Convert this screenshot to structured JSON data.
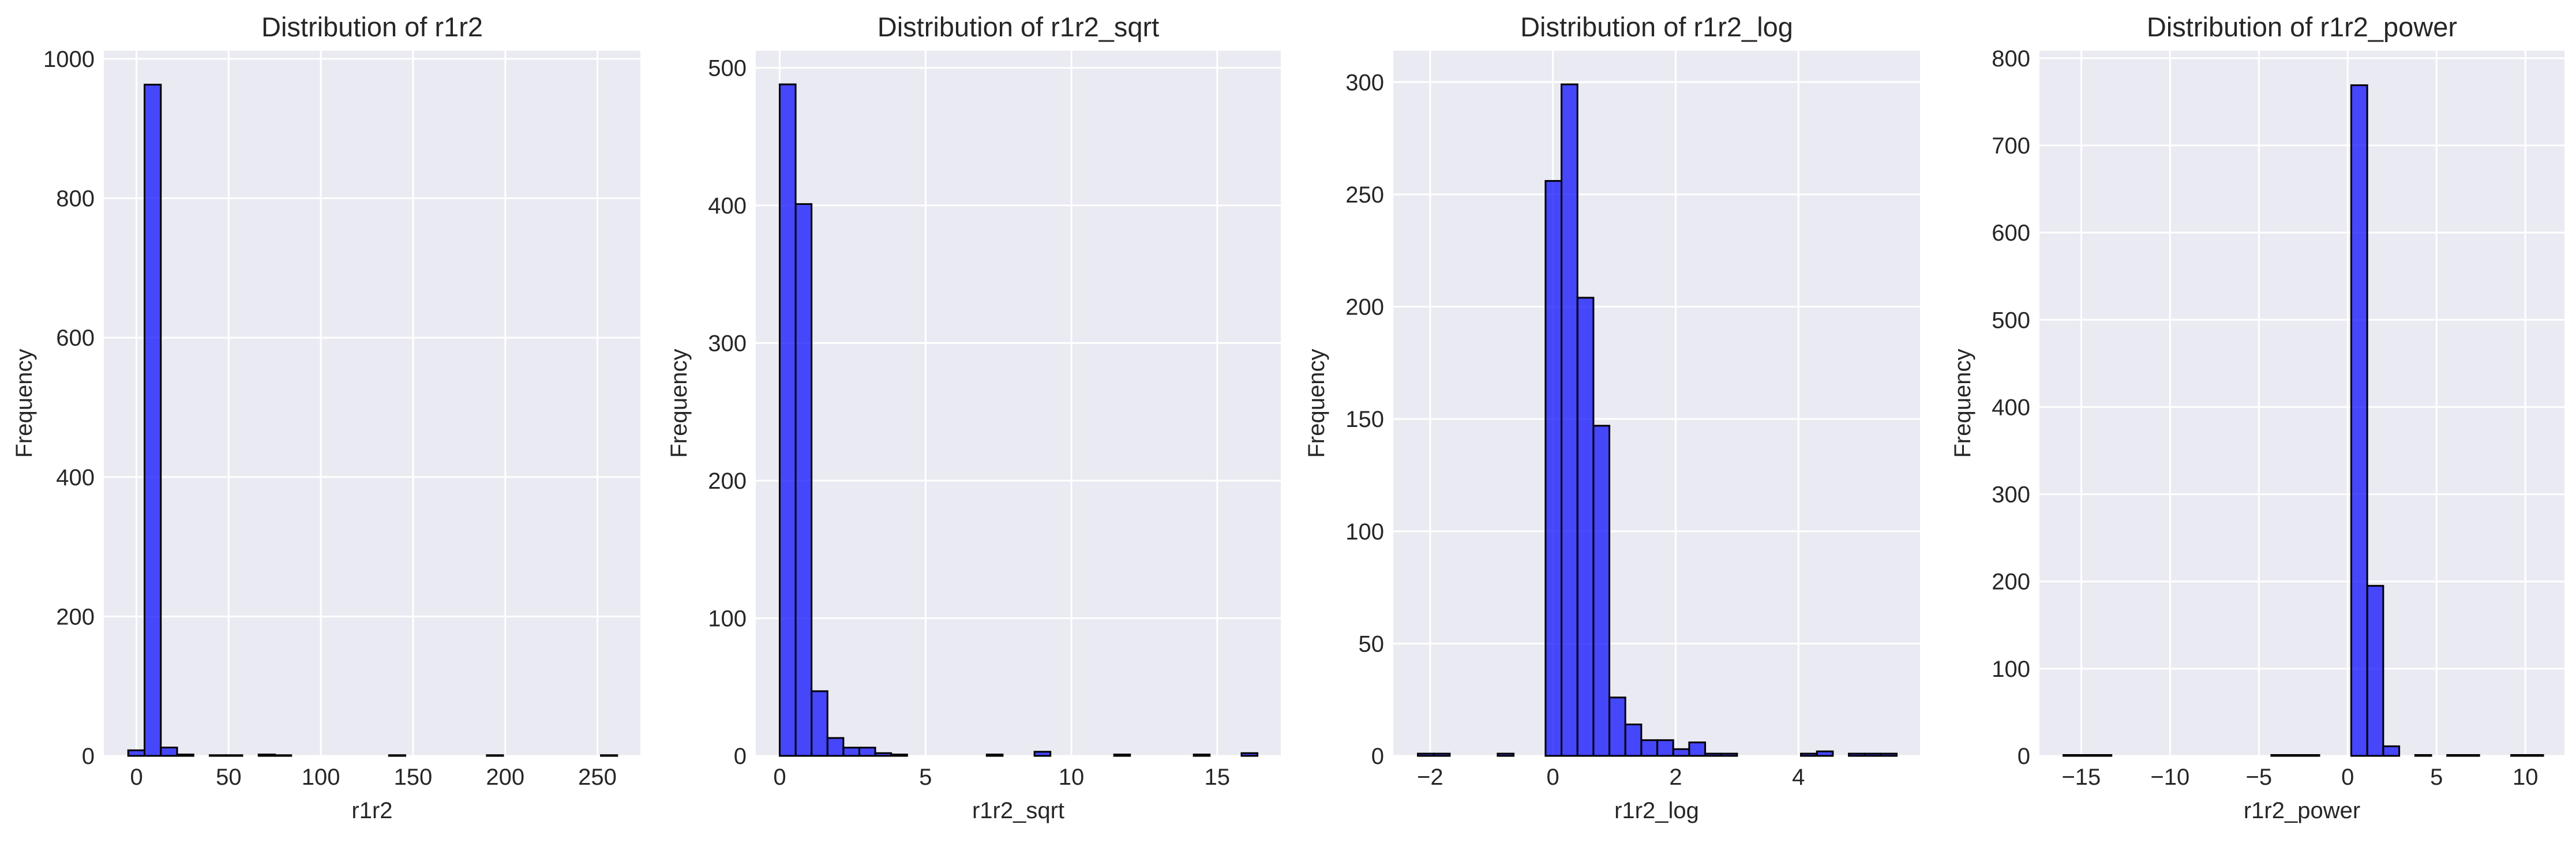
{
  "colors": {
    "figure_background": "#ffffff",
    "axes_background": "#eaeaf2",
    "grid": "#ffffff",
    "bar_fill": "#0000ff",
    "bar_fill_opacity": 0.7,
    "bar_edge": "#000000",
    "text": "#262626"
  },
  "chart_data": [
    {
      "type": "bar",
      "title": "Distribution of r1r2",
      "xlabel": "r1r2",
      "ylabel": "Frequency",
      "xlim": [
        -17.7,
        273.3
      ],
      "ylim": [
        0,
        1011.6
      ],
      "xticks": [
        0,
        50,
        100,
        150,
        200,
        250
      ],
      "yticks": [
        0,
        200,
        400,
        600,
        800,
        1000
      ],
      "grid": true,
      "legend": "none",
      "bins": {
        "start": -4.48,
        "width": 8.84,
        "count": 30
      },
      "counts": [
        8,
        963,
        12,
        2,
        0,
        1,
        1,
        0,
        2,
        1,
        0,
        0,
        0,
        0,
        0,
        0,
        1,
        0,
        0,
        0,
        0,
        0,
        1,
        0,
        0,
        0,
        0,
        0,
        0,
        1
      ]
    },
    {
      "type": "bar",
      "title": "Distribution of r1r2_sqrt",
      "xlabel": "r1r2_sqrt",
      "ylabel": "Frequency",
      "xlim": [
        -0.82,
        17.18
      ],
      "ylim": [
        0,
        512.4
      ],
      "xticks": [
        0,
        5,
        10,
        15
      ],
      "yticks": [
        0,
        100,
        200,
        300,
        400,
        500
      ],
      "grid": true,
      "legend": "none",
      "bins": {
        "start": 0.0,
        "width": 0.546,
        "count": 30
      },
      "counts": [
        488,
        401,
        47,
        13,
        6,
        6,
        2,
        1,
        0,
        0,
        0,
        0,
        0,
        1,
        0,
        0,
        3,
        0,
        0,
        0,
        0,
        1,
        0,
        0,
        0,
        0,
        1,
        0,
        0,
        2
      ]
    },
    {
      "type": "bar",
      "title": "Distribution of r1r2_log",
      "xlabel": "r1r2_log",
      "ylabel": "Frequency",
      "xlim": [
        -2.6,
        5.98
      ],
      "ylim": [
        0,
        313.95
      ],
      "xticks": [
        -2,
        0,
        2,
        4
      ],
      "yticks": [
        0,
        50,
        100,
        150,
        200,
        250,
        300
      ],
      "grid": true,
      "legend": "none",
      "bins": {
        "start": -2.2,
        "width": 0.26,
        "count": 30
      },
      "counts": [
        1,
        1,
        0,
        0,
        0,
        1,
        0,
        0,
        256,
        299,
        204,
        147,
        26,
        14,
        7,
        7,
        3,
        6,
        1,
        1,
        0,
        0,
        0,
        0,
        1,
        2,
        0,
        1,
        1,
        1
      ]
    },
    {
      "type": "bar",
      "title": "Distribution of r1r2_power",
      "xlabel": "r1r2_power",
      "ylabel": "Frequency",
      "xlim": [
        -17.35,
        12.2
      ],
      "ylim": [
        0,
        808.5
      ],
      "xticks": [
        -15,
        -10,
        -5,
        0,
        5,
        10
      ],
      "yticks": [
        0,
        100,
        200,
        300,
        400,
        500,
        600,
        700,
        800
      ],
      "grid": true,
      "legend": "none",
      "bins": {
        "start": -16.0,
        "width": 0.9,
        "count": 30
      },
      "counts": [
        1,
        1,
        1,
        0,
        0,
        0,
        0,
        0,
        0,
        0,
        0,
        0,
        0,
        1,
        1,
        1,
        0,
        0,
        769,
        195,
        11,
        0,
        1,
        0,
        1,
        1,
        0,
        0,
        1,
        1
      ]
    }
  ]
}
